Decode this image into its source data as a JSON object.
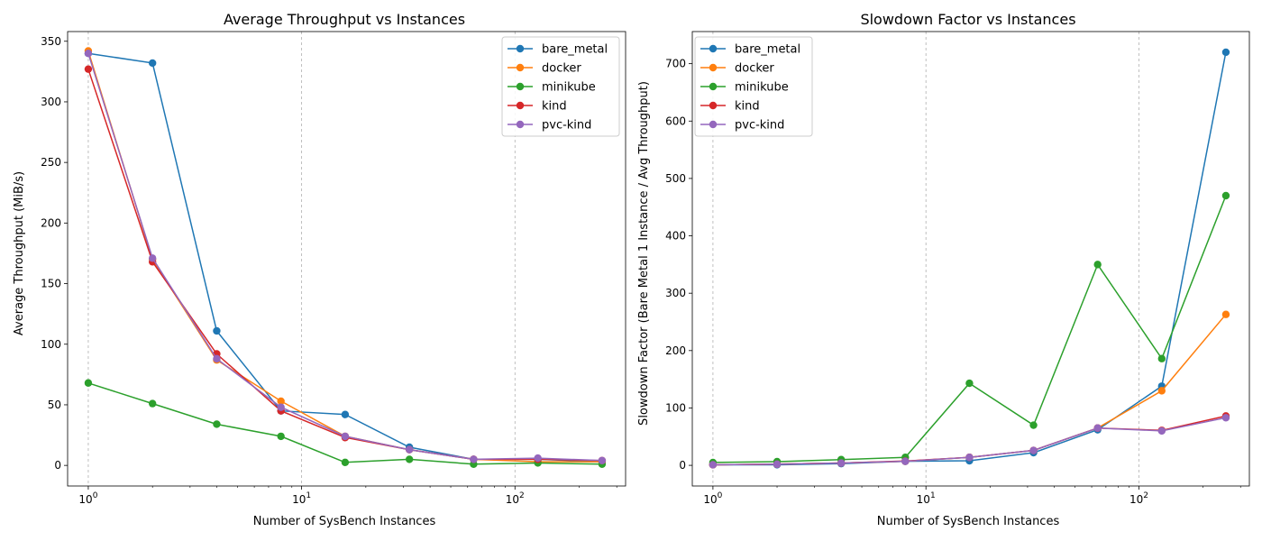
{
  "colors": {
    "bare_metal": "#1f77b4",
    "docker": "#ff7f0e",
    "minikube": "#2ca02c",
    "kind": "#d62728",
    "pvc-kind": "#9467bd",
    "grid": "#b0b0b0",
    "axes": "#000000"
  },
  "chart_data": [
    {
      "type": "line",
      "title": "Average Throughput vs Instances",
      "xlabel": "Number of SysBench Instances",
      "ylabel": "Average Throughput (MiB/s)",
      "xscale": "log",
      "xlim": [
        0.8,
        330
      ],
      "ylim": [
        -17,
        358
      ],
      "xticks": [
        {
          "value": 1,
          "base": "10",
          "exp": "0"
        },
        {
          "value": 10,
          "base": "10",
          "exp": "1"
        },
        {
          "value": 100,
          "base": "10",
          "exp": "2"
        }
      ],
      "yticks": [
        0,
        50,
        100,
        150,
        200,
        250,
        300,
        350
      ],
      "grid": "x-major dashed",
      "legend_loc": "upper right",
      "x": [
        1,
        2,
        4,
        8,
        16,
        32,
        64,
        128,
        256
      ],
      "series": [
        {
          "name": "bare_metal",
          "values": [
            340,
            332,
            111,
            45,
            42,
            15,
            5,
            5,
            3
          ]
        },
        {
          "name": "docker",
          "values": [
            342,
            170,
            87,
            53,
            24,
            13,
            5,
            3,
            3
          ]
        },
        {
          "name": "minikube",
          "values": [
            68,
            51,
            34,
            24,
            2.5,
            5,
            1,
            2,
            1
          ]
        },
        {
          "name": "kind",
          "values": [
            327,
            168,
            92,
            45,
            23,
            13,
            5,
            5,
            4
          ]
        },
        {
          "name": "pvc-kind",
          "values": [
            340,
            171,
            88,
            48,
            24,
            13,
            5,
            6,
            4
          ]
        }
      ]
    },
    {
      "type": "line",
      "title": "Slowdown Factor vs Instances",
      "xlabel": "Number of SysBench Instances",
      "ylabel": "Slowdown Factor (Bare Metal 1 Instance / Avg Throughput)",
      "xscale": "log",
      "xlim": [
        0.8,
        330
      ],
      "ylim": [
        -36,
        756
      ],
      "xticks": [
        {
          "value": 1,
          "base": "10",
          "exp": "0"
        },
        {
          "value": 10,
          "base": "10",
          "exp": "1"
        },
        {
          "value": 100,
          "base": "10",
          "exp": "2"
        }
      ],
      "yticks": [
        0,
        100,
        200,
        300,
        400,
        500,
        600,
        700
      ],
      "grid": "x-major dashed",
      "legend_loc": "upper left",
      "x": [
        1,
        2,
        4,
        8,
        16,
        32,
        64,
        128,
        256
      ],
      "series": [
        {
          "name": "bare_metal",
          "values": [
            1,
            1,
            3,
            7,
            8,
            22,
            62,
            138,
            720
          ]
        },
        {
          "name": "docker",
          "values": [
            1,
            2,
            4,
            7,
            14,
            26,
            65,
            130,
            263
          ]
        },
        {
          "name": "minikube",
          "values": [
            5,
            6.5,
            10,
            14,
            143,
            70,
            350,
            186,
            470
          ]
        },
        {
          "name": "kind",
          "values": [
            1,
            2,
            4,
            7.5,
            14,
            26,
            65,
            61,
            86
          ]
        },
        {
          "name": "pvc-kind",
          "values": [
            1,
            2,
            4,
            7,
            14,
            26,
            65,
            60,
            83
          ]
        }
      ]
    }
  ]
}
